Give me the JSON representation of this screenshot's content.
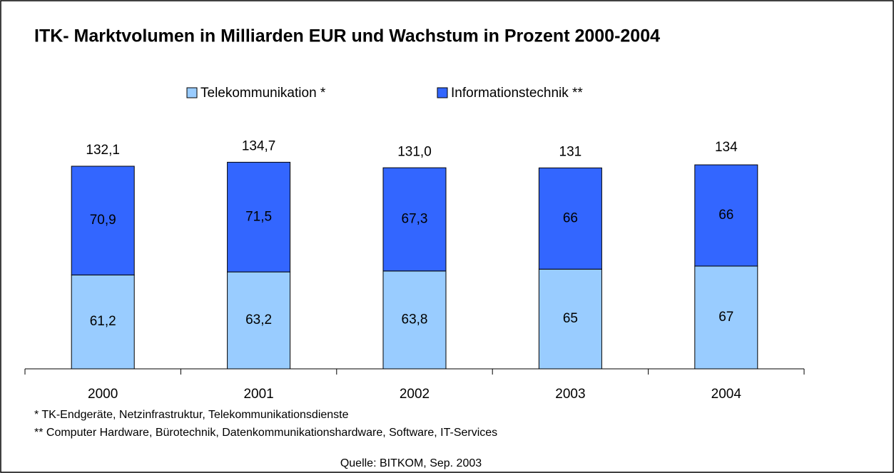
{
  "chart_data": {
    "type": "stacked_bar",
    "title": "ITK- Marktvolumen in Milliarden EUR und Wachstum in Prozent 2000-2004",
    "categories": [
      "2000",
      "2001",
      "2002",
      "2003",
      "2004"
    ],
    "series": [
      {
        "name": "Telekommunikation *",
        "color": "#99ccff",
        "values": [
          61.2,
          63.2,
          63.8,
          65,
          67
        ],
        "value_labels": [
          "61,2",
          "63,2",
          "63,8",
          "65",
          "67"
        ]
      },
      {
        "name": "Informationstechnik **",
        "color": "#3366ff",
        "values": [
          70.9,
          71.5,
          67.3,
          66,
          66
        ],
        "value_labels": [
          "70,9",
          "71,5",
          "67,3",
          "66",
          "66"
        ]
      }
    ],
    "totals": [
      132.1,
      134.7,
      131.0,
      131,
      134
    ],
    "total_labels": [
      "132,1",
      "134,7",
      "131,0",
      "131",
      "134"
    ],
    "footnotes": [
      "*  TK-Endgeräte, Netzinfrastruktur, Telekommunikationsdienste",
      "** Computer Hardware, Bürotechnik, Datenkommunikationshardware, Software, IT-Services"
    ],
    "source": "Quelle: BITKOM, Sep. 2003"
  }
}
